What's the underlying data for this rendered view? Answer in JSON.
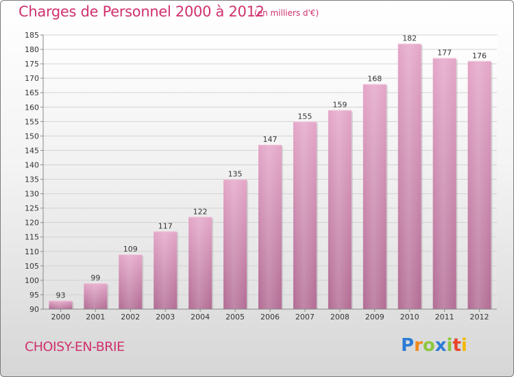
{
  "header": {
    "title": "Charges de Personnel 2000 à 2012",
    "subtitle": "(en milliers d'€)"
  },
  "footer": {
    "city": "CHOISY-EN-BRIE",
    "logo_letters": [
      "P",
      "r",
      "o",
      "x",
      "i",
      "t",
      "i"
    ]
  },
  "chart_data": {
    "type": "bar",
    "title": "Charges de Personnel 2000 à 2012",
    "subtitle": "(en milliers d'€)",
    "categories": [
      "2000",
      "2001",
      "2002",
      "2003",
      "2004",
      "2005",
      "2006",
      "2007",
      "2008",
      "2009",
      "2010",
      "2011",
      "2012"
    ],
    "values": [
      93,
      99,
      109,
      117,
      122,
      135,
      147,
      155,
      159,
      168,
      182,
      177,
      176
    ],
    "ylim": [
      90,
      185
    ],
    "yticks": [
      90,
      95,
      100,
      105,
      110,
      115,
      120,
      125,
      130,
      135,
      140,
      145,
      150,
      155,
      160,
      165,
      170,
      175,
      180,
      185
    ],
    "grid": true,
    "bar_color": "#cc7ba8",
    "xlabel": "",
    "ylabel": ""
  }
}
